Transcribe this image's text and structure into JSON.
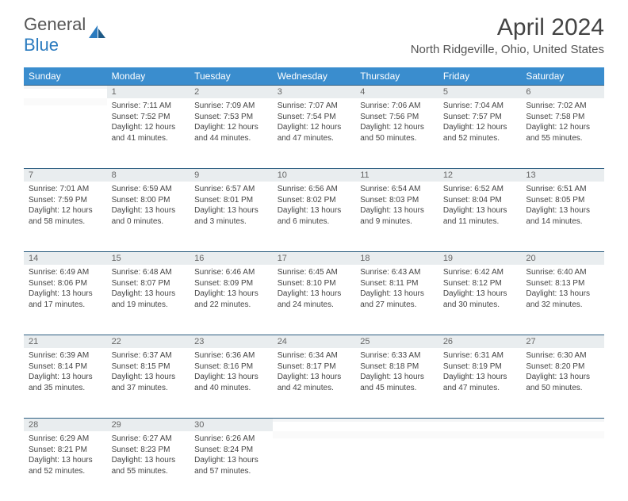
{
  "brand": {
    "word1": "General",
    "word2": "Blue"
  },
  "title": "April 2024",
  "location": "North Ridgeville, Ohio, United States",
  "colors": {
    "header_bg": "#3a8dce",
    "daynum_bg": "#e9edef",
    "row_border": "#2b5d80",
    "logo_blue": "#2b7bbf",
    "text": "#444444"
  },
  "weekdays": [
    "Sunday",
    "Monday",
    "Tuesday",
    "Wednesday",
    "Thursday",
    "Friday",
    "Saturday"
  ],
  "weeks": [
    [
      {
        "n": "",
        "sunrise": "",
        "sunset": "",
        "daylight": ""
      },
      {
        "n": "1",
        "sunrise": "7:11 AM",
        "sunset": "7:52 PM",
        "daylight": "12 hours and 41 minutes."
      },
      {
        "n": "2",
        "sunrise": "7:09 AM",
        "sunset": "7:53 PM",
        "daylight": "12 hours and 44 minutes."
      },
      {
        "n": "3",
        "sunrise": "7:07 AM",
        "sunset": "7:54 PM",
        "daylight": "12 hours and 47 minutes."
      },
      {
        "n": "4",
        "sunrise": "7:06 AM",
        "sunset": "7:56 PM",
        "daylight": "12 hours and 50 minutes."
      },
      {
        "n": "5",
        "sunrise": "7:04 AM",
        "sunset": "7:57 PM",
        "daylight": "12 hours and 52 minutes."
      },
      {
        "n": "6",
        "sunrise": "7:02 AM",
        "sunset": "7:58 PM",
        "daylight": "12 hours and 55 minutes."
      }
    ],
    [
      {
        "n": "7",
        "sunrise": "7:01 AM",
        "sunset": "7:59 PM",
        "daylight": "12 hours and 58 minutes."
      },
      {
        "n": "8",
        "sunrise": "6:59 AM",
        "sunset": "8:00 PM",
        "daylight": "13 hours and 0 minutes."
      },
      {
        "n": "9",
        "sunrise": "6:57 AM",
        "sunset": "8:01 PM",
        "daylight": "13 hours and 3 minutes."
      },
      {
        "n": "10",
        "sunrise": "6:56 AM",
        "sunset": "8:02 PM",
        "daylight": "13 hours and 6 minutes."
      },
      {
        "n": "11",
        "sunrise": "6:54 AM",
        "sunset": "8:03 PM",
        "daylight": "13 hours and 9 minutes."
      },
      {
        "n": "12",
        "sunrise": "6:52 AM",
        "sunset": "8:04 PM",
        "daylight": "13 hours and 11 minutes."
      },
      {
        "n": "13",
        "sunrise": "6:51 AM",
        "sunset": "8:05 PM",
        "daylight": "13 hours and 14 minutes."
      }
    ],
    [
      {
        "n": "14",
        "sunrise": "6:49 AM",
        "sunset": "8:06 PM",
        "daylight": "13 hours and 17 minutes."
      },
      {
        "n": "15",
        "sunrise": "6:48 AM",
        "sunset": "8:07 PM",
        "daylight": "13 hours and 19 minutes."
      },
      {
        "n": "16",
        "sunrise": "6:46 AM",
        "sunset": "8:09 PM",
        "daylight": "13 hours and 22 minutes."
      },
      {
        "n": "17",
        "sunrise": "6:45 AM",
        "sunset": "8:10 PM",
        "daylight": "13 hours and 24 minutes."
      },
      {
        "n": "18",
        "sunrise": "6:43 AM",
        "sunset": "8:11 PM",
        "daylight": "13 hours and 27 minutes."
      },
      {
        "n": "19",
        "sunrise": "6:42 AM",
        "sunset": "8:12 PM",
        "daylight": "13 hours and 30 minutes."
      },
      {
        "n": "20",
        "sunrise": "6:40 AM",
        "sunset": "8:13 PM",
        "daylight": "13 hours and 32 minutes."
      }
    ],
    [
      {
        "n": "21",
        "sunrise": "6:39 AM",
        "sunset": "8:14 PM",
        "daylight": "13 hours and 35 minutes."
      },
      {
        "n": "22",
        "sunrise": "6:37 AM",
        "sunset": "8:15 PM",
        "daylight": "13 hours and 37 minutes."
      },
      {
        "n": "23",
        "sunrise": "6:36 AM",
        "sunset": "8:16 PM",
        "daylight": "13 hours and 40 minutes."
      },
      {
        "n": "24",
        "sunrise": "6:34 AM",
        "sunset": "8:17 PM",
        "daylight": "13 hours and 42 minutes."
      },
      {
        "n": "25",
        "sunrise": "6:33 AM",
        "sunset": "8:18 PM",
        "daylight": "13 hours and 45 minutes."
      },
      {
        "n": "26",
        "sunrise": "6:31 AM",
        "sunset": "8:19 PM",
        "daylight": "13 hours and 47 minutes."
      },
      {
        "n": "27",
        "sunrise": "6:30 AM",
        "sunset": "8:20 PM",
        "daylight": "13 hours and 50 minutes."
      }
    ],
    [
      {
        "n": "28",
        "sunrise": "6:29 AM",
        "sunset": "8:21 PM",
        "daylight": "13 hours and 52 minutes."
      },
      {
        "n": "29",
        "sunrise": "6:27 AM",
        "sunset": "8:23 PM",
        "daylight": "13 hours and 55 minutes."
      },
      {
        "n": "30",
        "sunrise": "6:26 AM",
        "sunset": "8:24 PM",
        "daylight": "13 hours and 57 minutes."
      },
      {
        "n": "",
        "sunrise": "",
        "sunset": "",
        "daylight": ""
      },
      {
        "n": "",
        "sunrise": "",
        "sunset": "",
        "daylight": ""
      },
      {
        "n": "",
        "sunrise": "",
        "sunset": "",
        "daylight": ""
      },
      {
        "n": "",
        "sunrise": "",
        "sunset": "",
        "daylight": ""
      }
    ]
  ],
  "labels": {
    "sunrise": "Sunrise: ",
    "sunset": "Sunset: ",
    "daylight": "Daylight: "
  }
}
